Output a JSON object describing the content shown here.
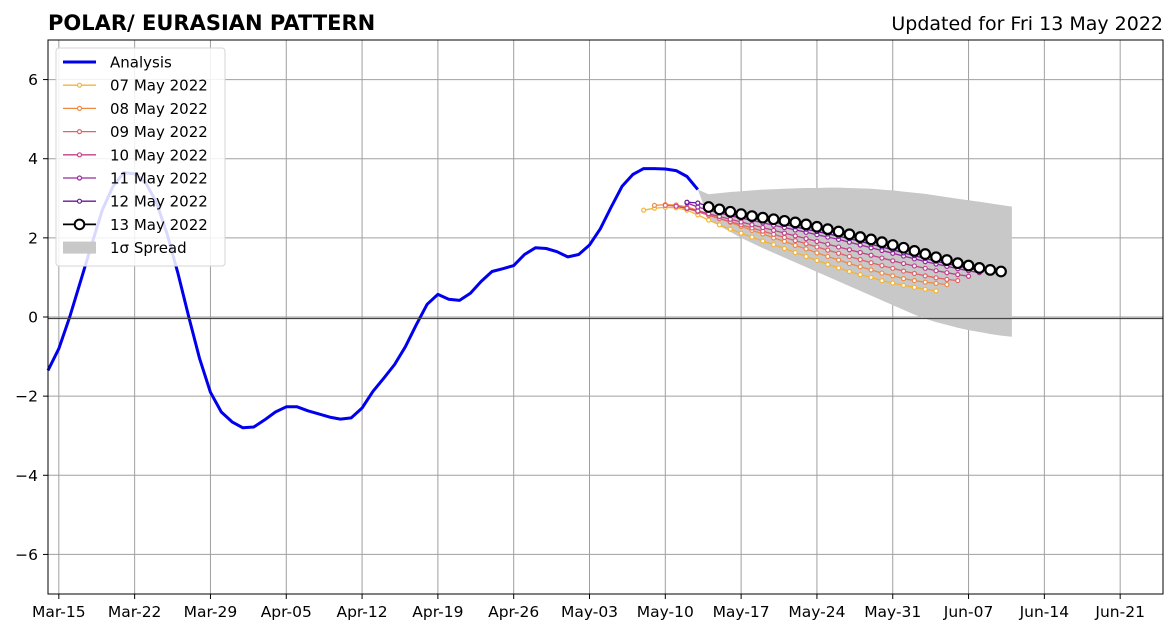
{
  "chart_data": {
    "type": "line",
    "title": "POLAR/ EURASIAN  PATTERN",
    "subtitle": "Updated for Fri 13 May 2022",
    "xlabel": "",
    "ylabel": "",
    "x_start": "Mar-14",
    "x_ticks": [
      "Mar-15",
      "Mar-22",
      "Mar-29",
      "Apr-05",
      "Apr-12",
      "Apr-19",
      "Apr-26",
      "May-03",
      "May-10",
      "May-17",
      "May-24",
      "May-31",
      "Jun-07",
      "Jun-14",
      "Jun-21"
    ],
    "y_ticks": [
      "6",
      "4",
      "2",
      "0",
      "−2",
      "−4",
      "−6"
    ],
    "ylim": [
      -7,
      7
    ],
    "grid": true,
    "legend_position": "top-left",
    "legend": [
      "Analysis",
      "07 May 2022",
      "08 May 2022",
      "09 May 2022",
      "10 May 2022",
      "11 May 2022",
      "12 May 2022",
      "13 May 2022",
      "1σ Spread"
    ],
    "colors": {
      "analysis": "#0000ee",
      "spread": "#c8c8c8",
      "f07": "#f5b335",
      "f08": "#ee8a48",
      "f09": "#e0636b",
      "f10": "#c0428a",
      "f11": "#9a2aa0",
      "f12": "#6a1698",
      "f13": "#000000"
    },
    "analysis": {
      "name": "Analysis",
      "start": "Mar-14",
      "values": [
        -1.35,
        -0.8,
        0.0,
        0.9,
        1.8,
        2.7,
        3.3,
        3.65,
        3.62,
        3.4,
        2.9,
        2.1,
        1.1,
        0.0,
        -1.05,
        -1.9,
        -2.4,
        -2.65,
        -2.8,
        -2.78,
        -2.6,
        -2.4,
        -2.27,
        -2.27,
        -2.37,
        -2.45,
        -2.53,
        -2.58,
        -2.55,
        -2.3,
        -1.88,
        -1.55,
        -1.2,
        -0.75,
        -0.2,
        0.32,
        0.57,
        0.45,
        0.42,
        0.6,
        0.9,
        1.15,
        1.22,
        1.3,
        1.58,
        1.75,
        1.73,
        1.65,
        1.52,
        1.58,
        1.82,
        2.23,
        2.78,
        3.3,
        3.6,
        3.75,
        3.75,
        3.74,
        3.7,
        3.55,
        3.22
      ]
    },
    "forecasts": [
      {
        "name": "07 May 2022",
        "start": "May-08",
        "values": [
          2.7,
          2.75,
          2.77,
          2.76,
          2.7,
          2.58,
          2.45,
          2.33,
          2.22,
          2.12,
          2.02,
          1.92,
          1.83,
          1.73,
          1.63,
          1.53,
          1.43,
          1.33,
          1.24,
          1.15,
          1.07,
          1.0,
          0.92,
          0.86,
          0.8,
          0.75,
          0.7,
          0.66
        ]
      },
      {
        "name": "08 May 2022",
        "start": "May-09",
        "values": [
          2.82,
          2.84,
          2.83,
          2.78,
          2.7,
          2.6,
          2.49,
          2.39,
          2.29,
          2.19,
          2.1,
          2.0,
          1.91,
          1.81,
          1.72,
          1.62,
          1.53,
          1.44,
          1.35,
          1.27,
          1.19,
          1.11,
          1.04,
          0.97,
          0.92,
          0.88,
          0.85,
          0.82
        ]
      },
      {
        "name": "09 May 2022",
        "start": "May-10",
        "values": [
          2.82,
          2.8,
          2.74,
          2.66,
          2.57,
          2.49,
          2.41,
          2.33,
          2.25,
          2.17,
          2.09,
          2.01,
          1.93,
          1.85,
          1.77,
          1.69,
          1.61,
          1.53,
          1.45,
          1.37,
          1.3,
          1.23,
          1.16,
          1.1,
          1.04,
          0.99,
          0.95,
          0.92
        ]
      },
      {
        "name": "10 May 2022",
        "start": "May-11",
        "values": [
          2.8,
          2.75,
          2.68,
          2.61,
          2.54,
          2.47,
          2.4,
          2.33,
          2.26,
          2.19,
          2.12,
          2.05,
          1.98,
          1.91,
          1.84,
          1.77,
          1.7,
          1.63,
          1.56,
          1.49,
          1.42,
          1.35,
          1.29,
          1.23,
          1.17,
          1.12,
          1.07,
          1.03
        ]
      },
      {
        "name": "11 May 2022",
        "start": "May-12",
        "values": [
          2.88,
          2.78,
          2.7,
          2.63,
          2.56,
          2.5,
          2.44,
          2.38,
          2.32,
          2.26,
          2.2,
          2.14,
          2.08,
          2.02,
          1.96,
          1.89,
          1.82,
          1.75,
          1.68,
          1.61,
          1.54,
          1.47,
          1.4,
          1.34,
          1.28,
          1.22,
          1.17,
          1.12
        ]
      },
      {
        "name": "12 May 2022",
        "start": "May-12",
        "values": [
          2.9,
          2.88,
          2.8,
          2.72,
          2.65,
          2.58,
          2.52,
          2.46,
          2.4,
          2.34,
          2.28,
          2.22,
          2.16,
          2.1,
          2.04,
          1.98,
          1.91,
          1.84,
          1.77,
          1.7,
          1.62,
          1.55,
          1.48,
          1.41,
          1.35,
          1.29,
          1.23,
          1.18
        ]
      },
      {
        "name": "13 May 2022",
        "start": "May-14",
        "values": [
          2.78,
          2.72,
          2.66,
          2.6,
          2.55,
          2.51,
          2.47,
          2.43,
          2.39,
          2.34,
          2.28,
          2.22,
          2.16,
          2.09,
          2.02,
          1.96,
          1.89,
          1.82,
          1.75,
          1.67,
          1.59,
          1.51,
          1.44,
          1.36,
          1.3,
          1.24,
          1.19,
          1.15
        ]
      }
    ],
    "spread": {
      "name": "1σ Spread",
      "start": "May-13",
      "upper": [
        3.22,
        3.1,
        3.13,
        3.16,
        3.18,
        3.2,
        3.22,
        3.23,
        3.24,
        3.25,
        3.26,
        3.26,
        3.27,
        3.27,
        3.26,
        3.25,
        3.24,
        3.22,
        3.2,
        3.17,
        3.14,
        3.11,
        3.07,
        3.03,
        2.99,
        2.95,
        2.91,
        2.87,
        2.83,
        2.79
      ],
      "lower": [
        3.22,
        2.5,
        2.3,
        2.15,
        2.0,
        1.87,
        1.74,
        1.62,
        1.5,
        1.38,
        1.26,
        1.14,
        1.02,
        0.9,
        0.78,
        0.66,
        0.54,
        0.42,
        0.3,
        0.18,
        0.06,
        -0.04,
        -0.13,
        -0.2,
        -0.27,
        -0.33,
        -0.38,
        -0.43,
        -0.47,
        -0.5
      ]
    }
  }
}
